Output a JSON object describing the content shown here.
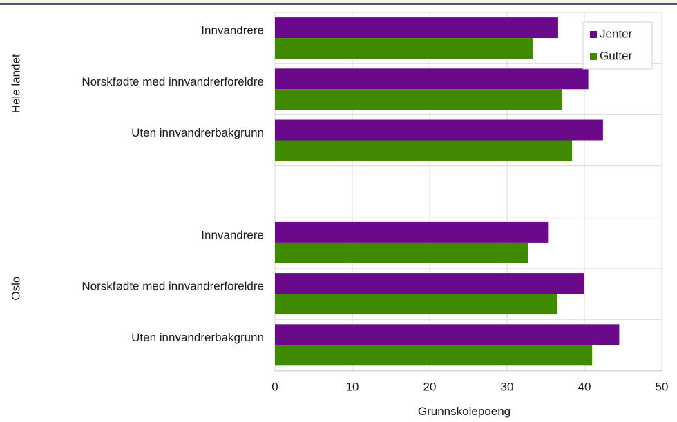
{
  "chart_data": {
    "type": "bar",
    "orientation": "horizontal",
    "title": "",
    "xlabel": "Grunnskolepoeng",
    "ylabel": "",
    "xlim": [
      0,
      50
    ],
    "xticks": [
      0,
      10,
      20,
      30,
      40,
      50
    ],
    "grid": true,
    "legend_position": "top-right",
    "groups": [
      {
        "label": "Hele landet",
        "categories": [
          "Innvandrere",
          "Norskfødte med innvandrerforeldre",
          "Uten innvandrerbakgrunn"
        ]
      },
      {
        "label": "Oslo",
        "categories": [
          "Innvandrere",
          "Norskfødte med innvandrerforeldre",
          "Uten innvandrerbakgrunn"
        ]
      }
    ],
    "series": [
      {
        "name": "Jenter",
        "color": "#6a0a8a",
        "values": [
          [
            36.6,
            40.5,
            42.4
          ],
          [
            35.3,
            40.0,
            44.5
          ]
        ]
      },
      {
        "name": "Gutter",
        "color": "#3f8a00",
        "values": [
          [
            33.3,
            37.1,
            38.4
          ],
          [
            32.7,
            36.5,
            41.0
          ]
        ]
      }
    ]
  }
}
